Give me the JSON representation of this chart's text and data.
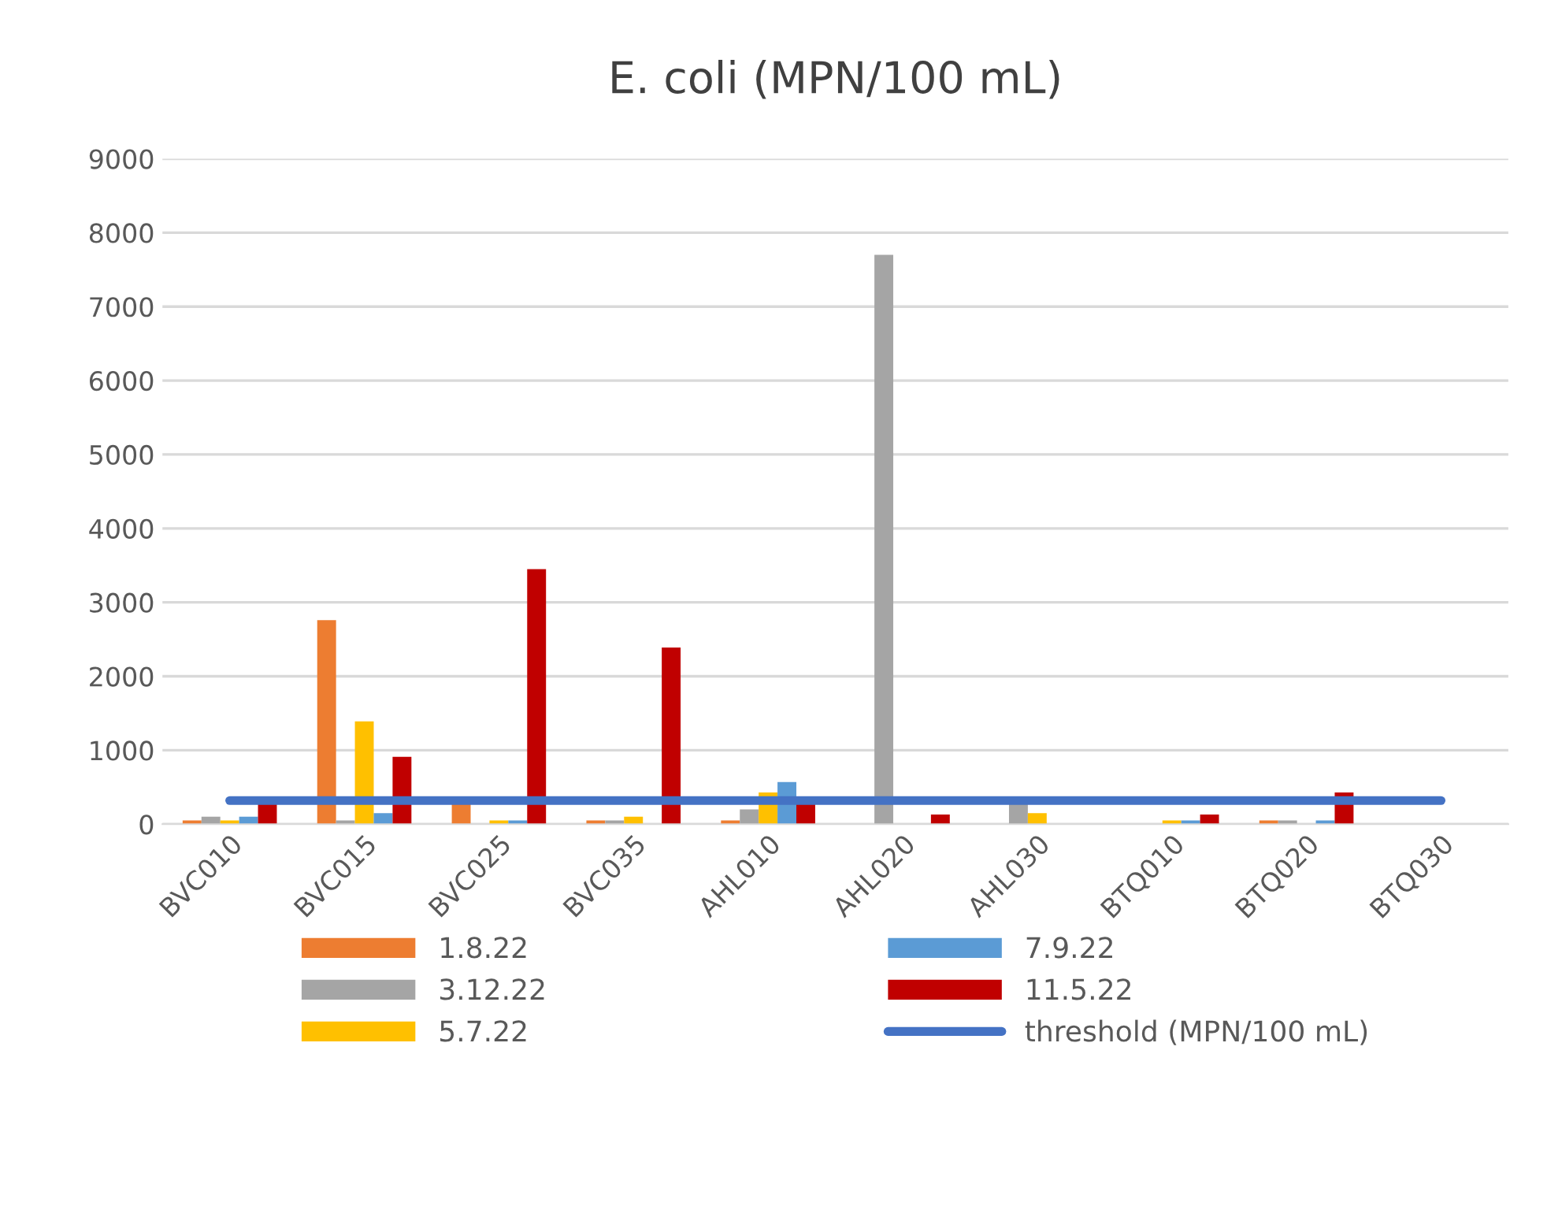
{
  "chart_data": {
    "type": "bar",
    "title": "E. coli (MPN/100 mL)",
    "categories": [
      "BVC010",
      "BVC015",
      "BVC025",
      "BVC035",
      "AHL010",
      "AHL020",
      "AHL030",
      "BTQ010",
      "BTQ020",
      "BTQ030"
    ],
    "series": [
      {
        "name": "1.8.22",
        "color": "#ed7d31",
        "values": [
          50,
          2760,
          300,
          50,
          50,
          null,
          null,
          null,
          50,
          null
        ]
      },
      {
        "name": "3.12.22",
        "color": "#a5a5a5",
        "values": [
          100,
          50,
          null,
          50,
          200,
          7700,
          300,
          null,
          50,
          null
        ]
      },
      {
        "name": "5.7.22",
        "color": "#ffc000",
        "values": [
          50,
          1390,
          50,
          100,
          430,
          null,
          150,
          50,
          null,
          null
        ]
      },
      {
        "name": "7.9.22",
        "color": "#5b9bd5",
        "values": [
          100,
          150,
          50,
          null,
          570,
          null,
          null,
          50,
          50,
          null
        ]
      },
      {
        "name": "11.5.22",
        "color": "#c00000",
        "values": [
          300,
          910,
          3450,
          2390,
          300,
          130,
          null,
          130,
          430,
          null
        ]
      },
      {
        "name": "threshold (MPN/100 mL)",
        "color": "#4472c4",
        "type": "line",
        "values": [
          320,
          320,
          320,
          320,
          320,
          320,
          320,
          320,
          320,
          320
        ]
      }
    ],
    "ylim": [
      0,
      9000
    ],
    "yticks": [
      0,
      1000,
      2000,
      3000,
      4000,
      5000,
      6000,
      7000,
      8000,
      9000
    ],
    "grid": "y",
    "legend": "bottom"
  }
}
